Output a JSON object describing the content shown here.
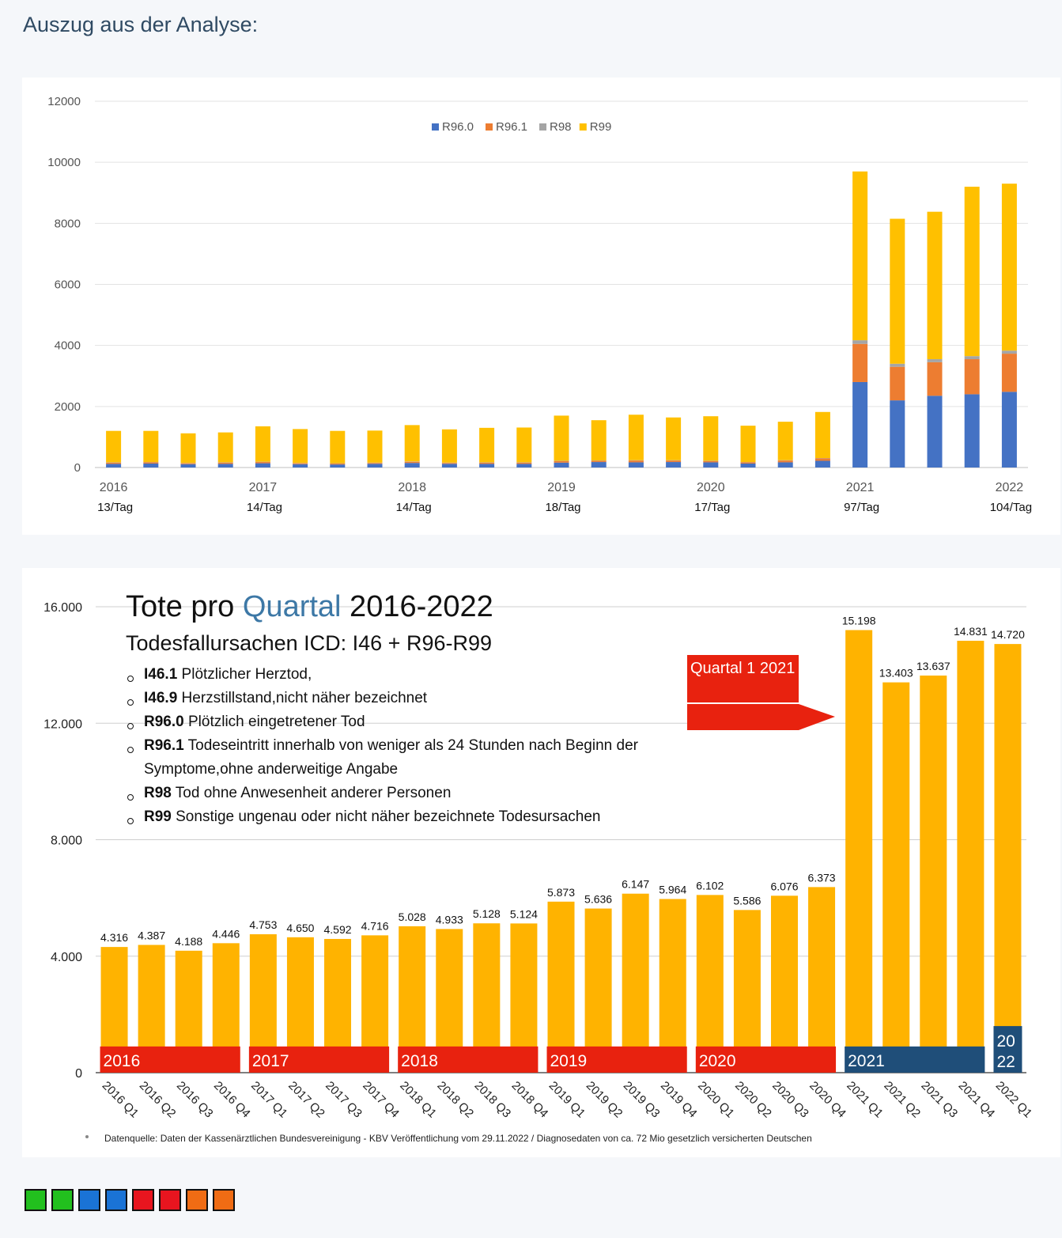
{
  "page": {
    "heading": "Auszug aus der Analyse:"
  },
  "chart_data": [
    {
      "type": "bar",
      "stacked": true,
      "title": "",
      "legend": {
        "placement": "top-center",
        "entries": [
          "R96.0",
          "R96.1",
          "R98",
          "R99"
        ]
      },
      "ylim": [
        0,
        12000
      ],
      "yticks": [
        "0",
        "2000",
        "4000",
        "6000",
        "8000",
        "10000",
        "12000"
      ],
      "grid": true,
      "x_tick_labels": [
        {
          "bar_index": 0,
          "label": "2016",
          "sub": "13/Tag"
        },
        {
          "bar_index": 4,
          "label": "2017",
          "sub": "14/Tag"
        },
        {
          "bar_index": 8,
          "label": "2018",
          "sub": "14/Tag"
        },
        {
          "bar_index": 12,
          "label": "2019",
          "sub": "18/Tag"
        },
        {
          "bar_index": 16,
          "label": "2020",
          "sub": "17/Tag"
        },
        {
          "bar_index": 20,
          "label": "2021",
          "sub": "97/Tag"
        },
        {
          "bar_index": 24,
          "label": "2022",
          "sub": "104/Tag"
        }
      ],
      "colors": {
        "R96.0": "#4472c4",
        "R96.1": "#ed7d31",
        "R98": "#a5a5a5",
        "R99": "#ffc000"
      },
      "series": [
        {
          "name": "R96.0",
          "values": [
            120,
            130,
            110,
            120,
            140,
            110,
            100,
            120,
            150,
            120,
            120,
            120,
            160,
            180,
            170,
            180,
            170,
            130,
            170,
            220,
            2800,
            2200,
            2350,
            2400,
            2480
          ]
        },
        {
          "name": "R96.1",
          "values": [
            40,
            40,
            30,
            40,
            40,
            30,
            30,
            30,
            40,
            30,
            40,
            40,
            50,
            40,
            60,
            50,
            40,
            40,
            60,
            80,
            1250,
            1100,
            1100,
            1150,
            1250
          ]
        },
        {
          "name": "R98",
          "values": [
            10,
            10,
            10,
            10,
            10,
            10,
            10,
            10,
            10,
            10,
            10,
            10,
            10,
            10,
            10,
            10,
            10,
            10,
            10,
            10,
            120,
            100,
            100,
            100,
            100
          ]
        },
        {
          "name": "R99",
          "values": [
            1030,
            1020,
            970,
            980,
            1160,
            1110,
            1060,
            1050,
            1190,
            1090,
            1130,
            1140,
            1480,
            1320,
            1490,
            1400,
            1460,
            1190,
            1260,
            1510,
            5530,
            4750,
            4830,
            5550,
            5470
          ]
        }
      ]
    },
    {
      "type": "bar",
      "title": "Tote pro Quartal 2016-2022",
      "title_parts": [
        "Tote pro ",
        "Quartal",
        " 2016-2022"
      ],
      "subtitle": "Todesfallursachen ICD: I46 + R96-R99",
      "codes": [
        {
          "code": "I46.1",
          "text": " Plötzlicher Herztod,"
        },
        {
          "code": "I46.9",
          "text": " Herzstillstand,nicht näher bezeichnet"
        },
        {
          "code": "R96.0",
          "text": " Plötzlich eingetretener Tod"
        },
        {
          "code": "R96.1",
          "text": " Todeseintritt innerhalb von weniger als 24 Stunden nach Beginn der Symptome,ohne anderweitige Angabe"
        },
        {
          "code": "R98",
          "text": " Tod ohne Anwesenheit anderer Personen"
        },
        {
          "code": "R99",
          "text": " Sonstige ungenau oder nicht näher bezeichnete Todesursachen"
        }
      ],
      "callout": "Quartal 1 2021",
      "ylim": [
        0,
        16000
      ],
      "yticks": [
        "0",
        "4.000",
        "8.000",
        "12.000",
        "16.000"
      ],
      "grid": true,
      "bar_color": "#ffb300",
      "categories": [
        "2016 Q1",
        "2016 Q2",
        "2016 Q3",
        "2016 Q4",
        "2017 Q1",
        "2017 Q2",
        "2017 Q3",
        "2017 Q4",
        "2018 Q1",
        "2018 Q2",
        "2018 Q3",
        "2018 Q4",
        "2019 Q1",
        "2019 Q2",
        "2019 Q3",
        "2019 Q4",
        "2020 Q1",
        "2020 Q2",
        "2020 Q3",
        "2020 Q4",
        "2021 Q1",
        "2021 Q2",
        "2021 Q3",
        "2021 Q4",
        "2022 Q1"
      ],
      "values": [
        4316,
        4387,
        4188,
        4446,
        4753,
        4650,
        4592,
        4716,
        5028,
        4933,
        5128,
        5124,
        5873,
        5636,
        6147,
        5964,
        6102,
        5586,
        6076,
        6373,
        15198,
        13403,
        13637,
        14831,
        14720
      ],
      "value_labels": [
        "4.316",
        "4.387",
        "4.188",
        "4.446",
        "4.753",
        "4.650",
        "4.592",
        "4.716",
        "5.028",
        "4.933",
        "5.128",
        "5.124",
        "5.873",
        "5.636",
        "6.147",
        "5.964",
        "6.102",
        "5.586",
        "6.076",
        "6.373",
        "15.198",
        "13.403",
        "13.637",
        "14.831",
        "14.720"
      ],
      "year_bands": [
        {
          "label": "2016",
          "first": 0,
          "last": 3,
          "color": "#e8220f"
        },
        {
          "label": "2017",
          "first": 4,
          "last": 7,
          "color": "#e8220f"
        },
        {
          "label": "2018",
          "first": 8,
          "last": 11,
          "color": "#e8220f"
        },
        {
          "label": "2019",
          "first": 12,
          "last": 15,
          "color": "#e8220f"
        },
        {
          "label": "2020",
          "first": 16,
          "last": 19,
          "color": "#e8220f"
        },
        {
          "label": "2021",
          "first": 20,
          "last": 23,
          "color": "#1f4e79"
        },
        {
          "label": "20 22",
          "first": 24,
          "last": 24,
          "color": "#1f4e79"
        }
      ],
      "source": "Datenquelle: Daten der Kassenärztlichen Bundesvereinigung - KBV Veröffentlichung vom 29.11.2022 / Diagnosedaten von ca. 72 Mio gesetzlich versicherten Deutschen"
    }
  ],
  "swatches": [
    "#22c01e",
    "#22c01e",
    "#1a73d6",
    "#1a73d6",
    "#e8151f",
    "#e8151f",
    "#f06c14",
    "#f06c14"
  ]
}
